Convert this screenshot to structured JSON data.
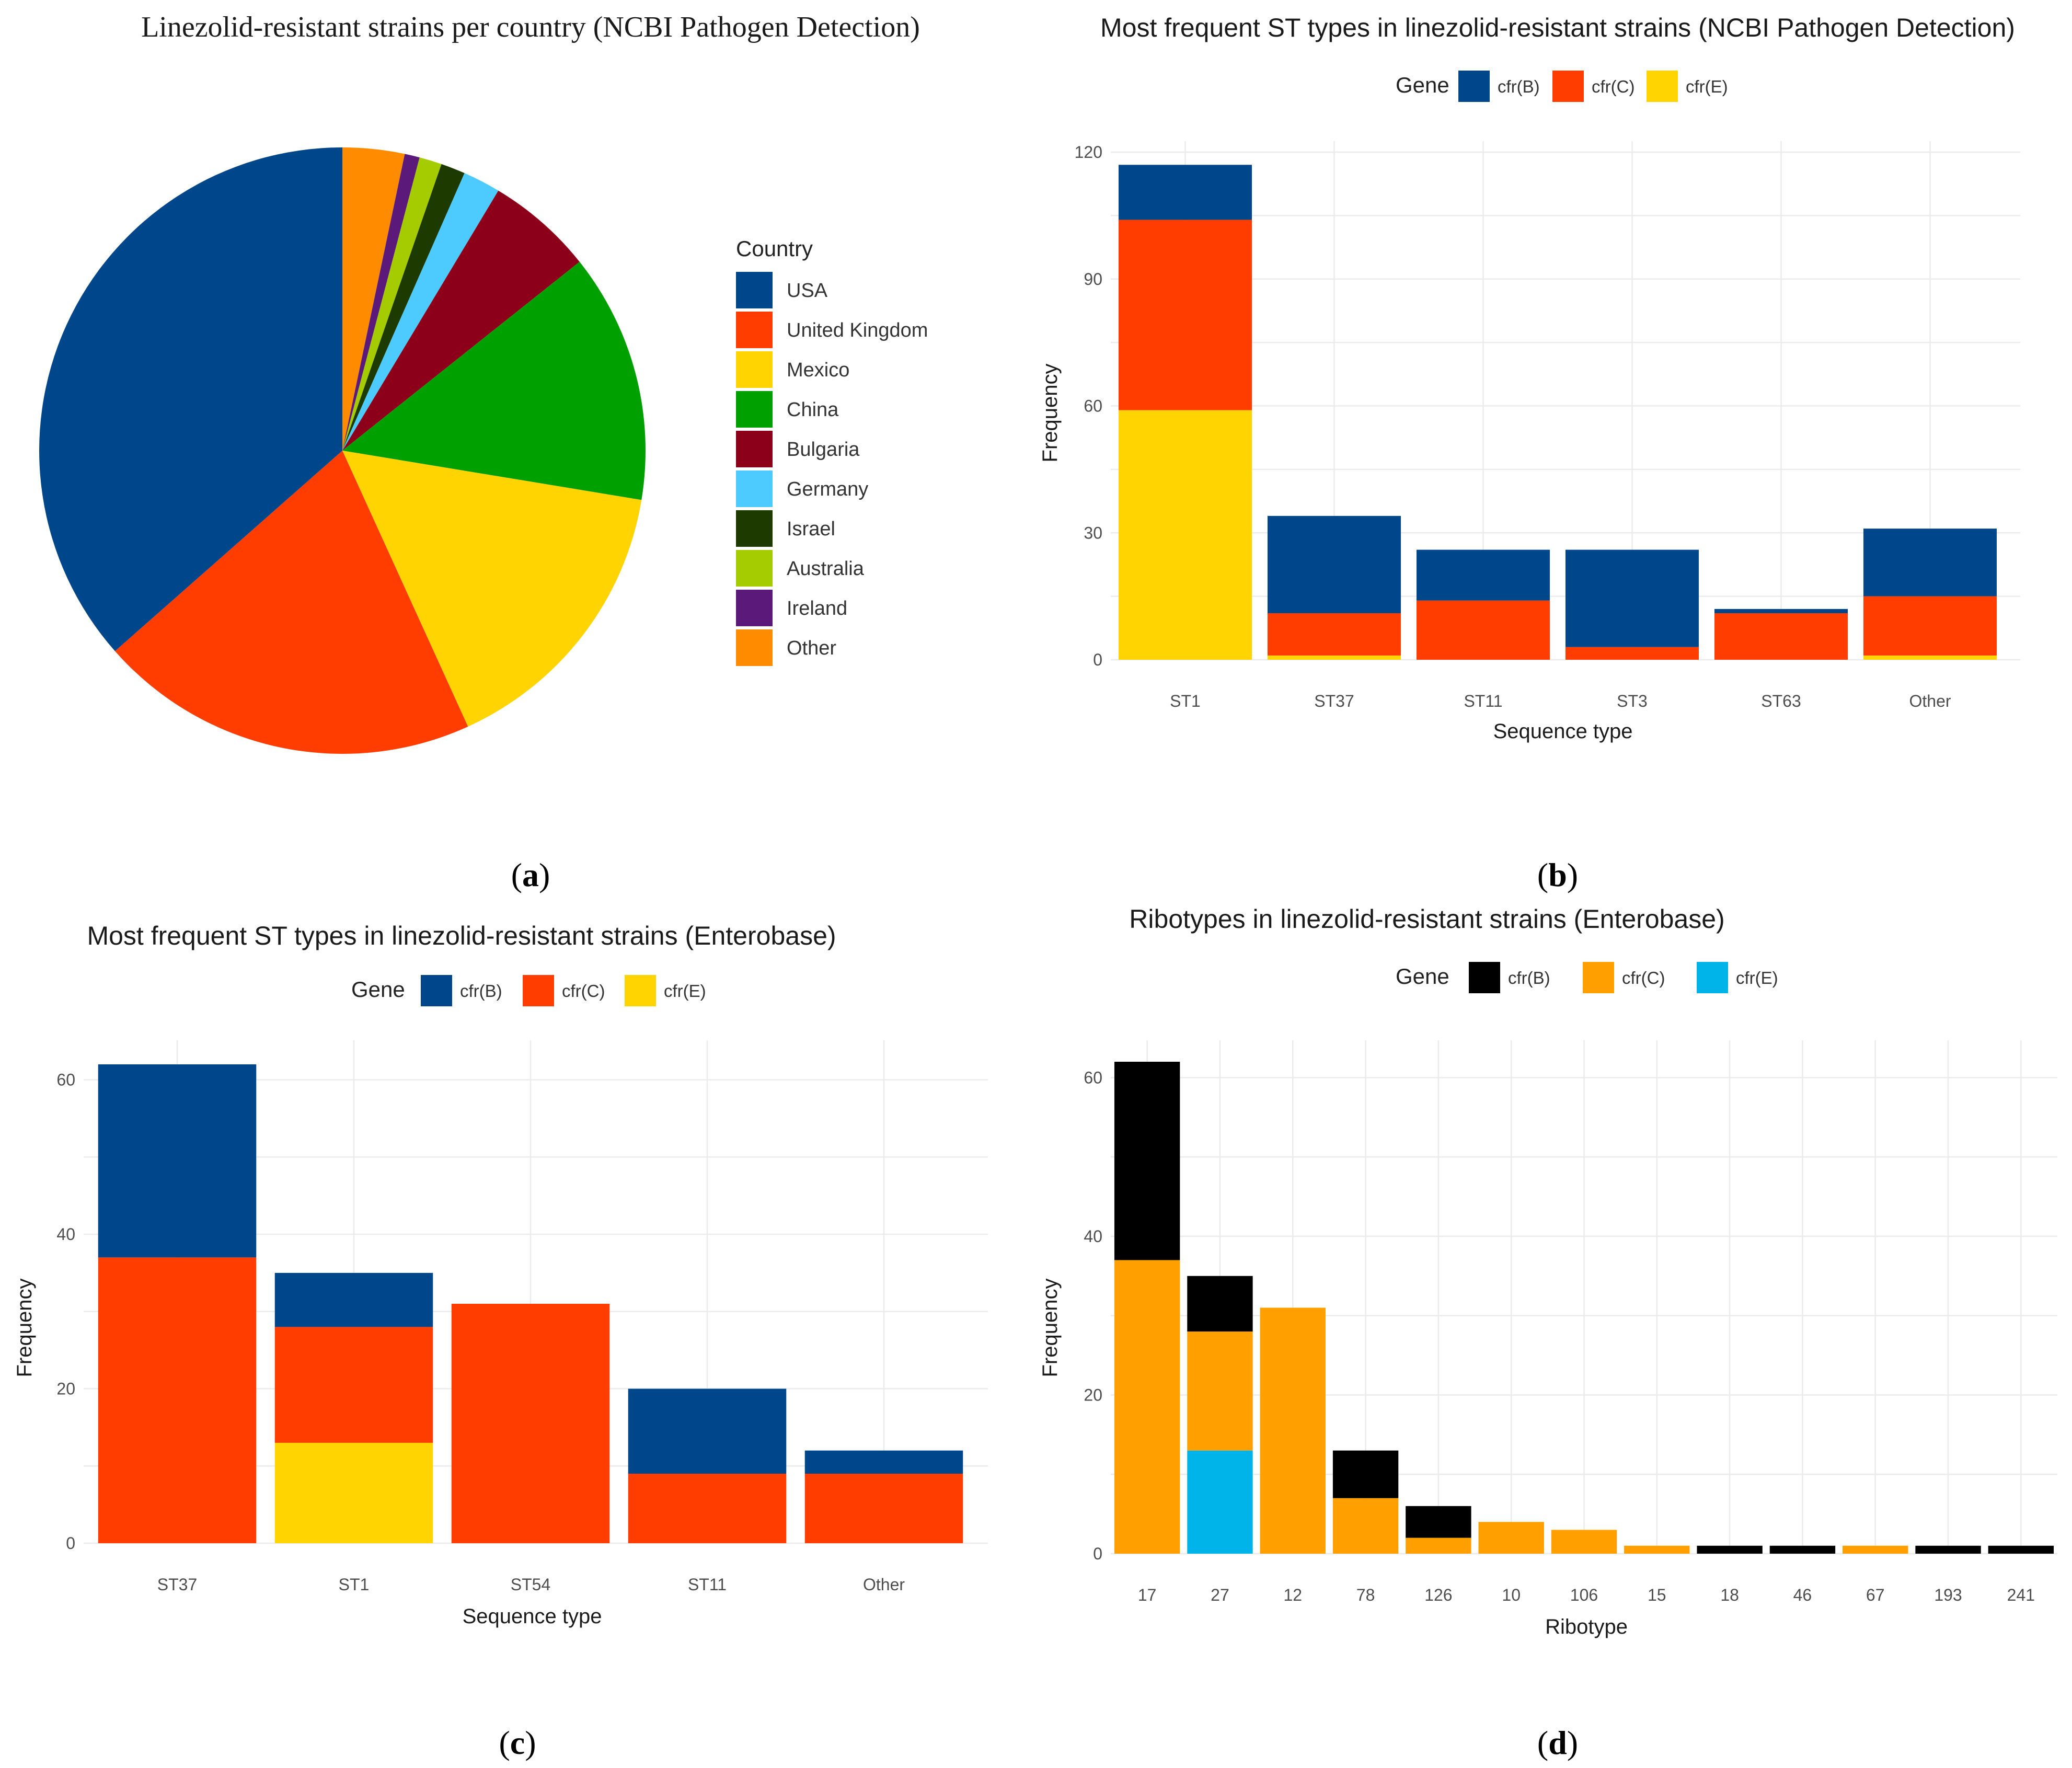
{
  "colors": {
    "cfrB_navy": "#00468b",
    "cfrC_red": "#ff3d00",
    "cfrE_yellow": "#ffd400",
    "cfrB_black": "#000000",
    "cfrC_orange": "#ffa000",
    "cfrE_cyan": "#00b4ea"
  },
  "panels": {
    "a": {
      "caption_letter": "a",
      "caption_open": "(",
      "caption_close": ")"
    },
    "b": {
      "caption_letter": "b",
      "caption_open": "(",
      "caption_close": ")"
    },
    "c": {
      "caption_letter": "c",
      "caption_open": "(",
      "caption_close": ")"
    },
    "d": {
      "caption_letter": "d",
      "caption_open": "(",
      "caption_close": ")"
    }
  },
  "chart_data": [
    {
      "id": "a",
      "type": "pie",
      "title": "Linezolid-resistant strains per country (NCBI Pathogen Detection)",
      "legend_title": "Country",
      "legend_position": "right",
      "start_angle_deg": 0,
      "direction": "clockwise",
      "slices": [
        {
          "label": "Other",
          "value": 3.3,
          "color": "#ff8c00"
        },
        {
          "label": "Ireland",
          "value": 0.8,
          "color": "#5b1a7a"
        },
        {
          "label": "Australia",
          "value": 1.2,
          "color": "#a4cc00"
        },
        {
          "label": "Israel",
          "value": 1.3,
          "color": "#1d3a00"
        },
        {
          "label": "Germany",
          "value": 2.0,
          "color": "#4dcbff"
        },
        {
          "label": "Bulgaria",
          "value": 5.7,
          "color": "#8c001a"
        },
        {
          "label": "China",
          "value": 13.3,
          "color": "#00a000"
        },
        {
          "label": "Mexico",
          "value": 15.6,
          "color": "#ffd400"
        },
        {
          "label": "United Kingdom",
          "value": 20.3,
          "color": "#ff3d00"
        },
        {
          "label": "USA",
          "value": 36.5,
          "color": "#00468b"
        }
      ],
      "legend_order": [
        "USA",
        "United Kingdom",
        "Mexico",
        "China",
        "Bulgaria",
        "Germany",
        "Israel",
        "Australia",
        "Ireland",
        "Other"
      ]
    },
    {
      "id": "b",
      "type": "bar",
      "stacked": true,
      "title": "Most frequent ST types in linezolid-resistant strains (NCBI Pathogen Detection)",
      "legend_title": "Gene",
      "legend_position": "top",
      "xlabel": "Sequence type",
      "ylabel": "Frequency",
      "ylim": [
        0,
        120
      ],
      "yticks": [
        0,
        30,
        60,
        90,
        120
      ],
      "categories": [
        "ST1",
        "ST37",
        "ST11",
        "ST3",
        "ST63",
        "Other"
      ],
      "series": [
        {
          "name": "cfr(E)",
          "color": "#ffd400",
          "values": [
            59,
            1,
            0,
            0,
            0,
            1
          ]
        },
        {
          "name": "cfr(C)",
          "color": "#ff3d00",
          "values": [
            45,
            10,
            14,
            3,
            11,
            14
          ]
        },
        {
          "name": "cfr(B)",
          "color": "#00468b",
          "values": [
            13,
            23,
            12,
            23,
            1,
            16
          ]
        }
      ],
      "legend_order": [
        "cfr(B)",
        "cfr(C)",
        "cfr(E)"
      ]
    },
    {
      "id": "c",
      "type": "bar",
      "stacked": true,
      "title": "Most frequent ST types in linezolid-resistant strains (Enterobase)",
      "legend_title": "Gene",
      "legend_position": "top",
      "xlabel": "Sequence type",
      "ylabel": "Frequency",
      "ylim": [
        0,
        62
      ],
      "yticks": [
        0,
        20,
        40,
        60
      ],
      "categories": [
        "ST37",
        "ST1",
        "ST54",
        "ST11",
        "Other"
      ],
      "series": [
        {
          "name": "cfr(E)",
          "color": "#ffd400",
          "values": [
            0,
            13,
            0,
            0,
            0
          ]
        },
        {
          "name": "cfr(C)",
          "color": "#ff3d00",
          "values": [
            37,
            15,
            31,
            9,
            9
          ]
        },
        {
          "name": "cfr(B)",
          "color": "#00468b",
          "values": [
            25,
            7,
            0,
            11,
            3
          ]
        }
      ],
      "legend_order": [
        "cfr(B)",
        "cfr(C)",
        "cfr(E)"
      ]
    },
    {
      "id": "d",
      "type": "bar",
      "stacked": true,
      "title": "Ribotypes in linezolid-resistant strains (Enterobase)",
      "legend_title": "Gene",
      "legend_position": "top",
      "xlabel": "Ribotype",
      "ylabel": "Frequency",
      "ylim": [
        0,
        62
      ],
      "yticks": [
        0,
        20,
        40,
        60
      ],
      "categories": [
        "17",
        "27",
        "12",
        "78",
        "126",
        "10",
        "106",
        "15",
        "18",
        "46",
        "67",
        "193",
        "241"
      ],
      "series": [
        {
          "name": "cfr(E)",
          "color": "#00b4ea",
          "values": [
            0,
            13,
            0,
            0,
            0,
            0,
            0,
            0,
            0,
            0,
            0,
            0,
            0
          ]
        },
        {
          "name": "cfr(C)",
          "color": "#ffa000",
          "values": [
            37,
            15,
            31,
            7,
            2,
            4,
            3,
            1,
            0,
            0,
            1,
            0,
            0
          ]
        },
        {
          "name": "cfr(B)",
          "color": "#000000",
          "values": [
            25,
            7,
            0,
            6,
            4,
            0,
            0,
            0,
            1,
            1,
            0,
            1,
            1
          ]
        }
      ],
      "legend_order": [
        "cfr(B)",
        "cfr(C)",
        "cfr(E)"
      ]
    }
  ]
}
